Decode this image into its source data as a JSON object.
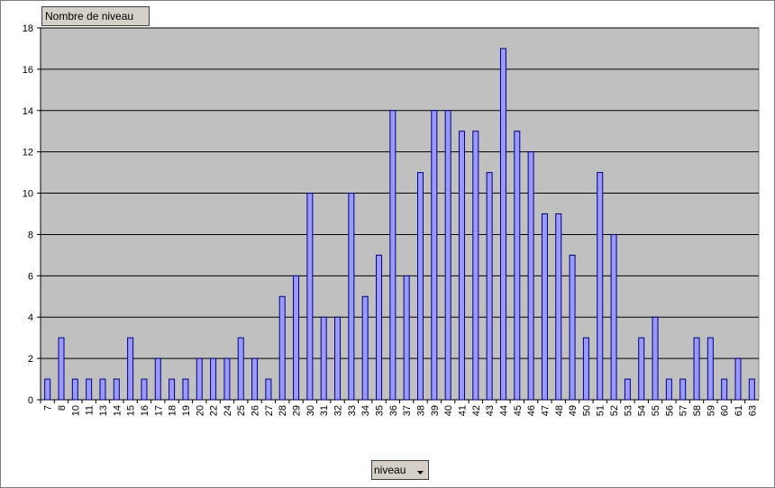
{
  "chart_data": {
    "type": "bar",
    "title": "Nombre de niveau",
    "x_label": "niveau",
    "categories": [
      "7",
      "8",
      "10",
      "11",
      "13",
      "14",
      "15",
      "16",
      "17",
      "18",
      "19",
      "20",
      "22",
      "24",
      "25",
      "26",
      "27",
      "28",
      "29",
      "30",
      "31",
      "32",
      "33",
      "34",
      "35",
      "36",
      "37",
      "38",
      "39",
      "40",
      "41",
      "42",
      "43",
      "44",
      "45",
      "46",
      "47",
      "48",
      "49",
      "50",
      "51",
      "52",
      "53",
      "54",
      "55",
      "56",
      "57",
      "58",
      "59",
      "60",
      "61",
      "63"
    ],
    "values": [
      1,
      3,
      1,
      1,
      1,
      1,
      3,
      1,
      2,
      1,
      1,
      2,
      2,
      2,
      3,
      2,
      1,
      5,
      6,
      10,
      4,
      4,
      10,
      5,
      7,
      14,
      6,
      11,
      14,
      14,
      13,
      13,
      11,
      17,
      13,
      12,
      9,
      9,
      7,
      3,
      11,
      8,
      1,
      3,
      4,
      1,
      1,
      3,
      3,
      1,
      2,
      1
    ],
    "color": "#9999ff",
    "ylim": [
      0,
      18
    ],
    "yticks": [
      0,
      2,
      4,
      6,
      8,
      10,
      12,
      14,
      16,
      18
    ],
    "grid": true
  }
}
